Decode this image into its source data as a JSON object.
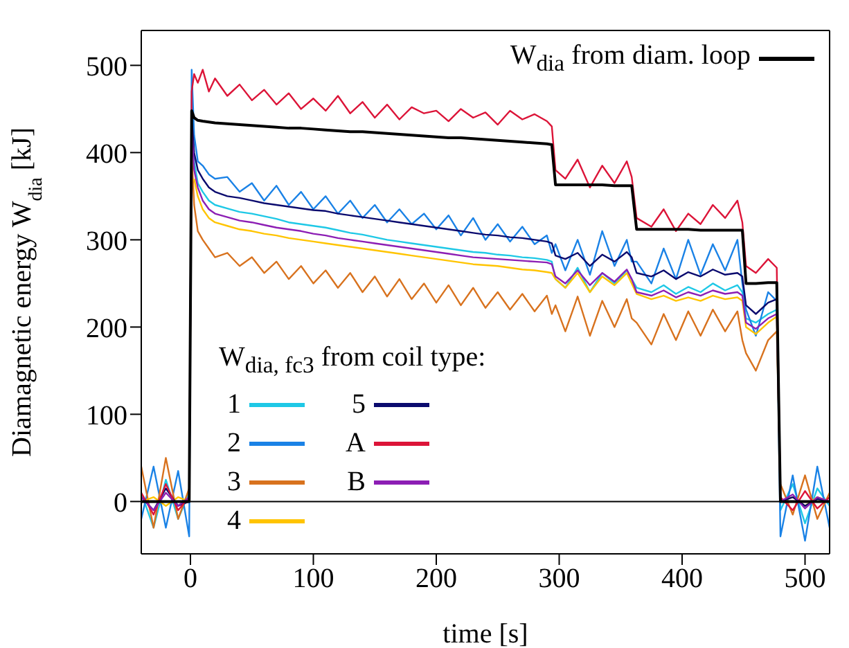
{
  "chart_data": {
    "type": "line",
    "xlabel": "time [s]",
    "ylabel": "Diamagnetic energy W$_{dia}$ [kJ]",
    "legend_title": "W$_{dia, fc3}$ from coil type:",
    "x": [
      -40,
      -30,
      -20,
      -10,
      -1,
      1,
      3,
      6,
      10,
      15,
      20,
      30,
      40,
      50,
      60,
      70,
      80,
      90,
      100,
      110,
      120,
      130,
      140,
      150,
      160,
      170,
      180,
      190,
      200,
      210,
      220,
      230,
      240,
      250,
      260,
      270,
      280,
      290,
      294,
      297,
      305,
      315,
      325,
      335,
      345,
      355,
      359,
      363,
      375,
      385,
      395,
      405,
      415,
      425,
      435,
      445,
      449,
      452,
      460,
      470,
      477,
      480,
      490,
      500,
      510,
      520
    ],
    "xlim": [
      -40,
      520
    ],
    "xticks": [
      0,
      100,
      200,
      300,
      400,
      500
    ],
    "ylim": [
      -60,
      540
    ],
    "yticks": [
      0,
      100,
      200,
      300,
      400,
      500
    ],
    "grid": false,
    "legend": "top right",
    "marker": "none",
    "line_style": "solid",
    "ref_lines": [
      {
        "axis": "y",
        "value": 0,
        "color": "#000000"
      }
    ],
    "series": [
      {
        "name": "W$_{dia}$ from diam. loop",
        "color": "#000000",
        "values": [
          0,
          0,
          0,
          0,
          0,
          448,
          440,
          437,
          436,
          435,
          434,
          433,
          432,
          431,
          430,
          429,
          428,
          428,
          427,
          426,
          425,
          424,
          424,
          423,
          422,
          421,
          420,
          419,
          418,
          417,
          417,
          416,
          415,
          414,
          413,
          412,
          411,
          410,
          409,
          363,
          363,
          363,
          363,
          363,
          362,
          362,
          362,
          312,
          312,
          312,
          312,
          312,
          311,
          311,
          311,
          311,
          311,
          250,
          250,
          251,
          251,
          0,
          0,
          0,
          0,
          0
        ]
      },
      {
        "name": "1",
        "color": "#1ec8e6",
        "values": [
          10,
          -30,
          25,
          -20,
          10,
          460,
          390,
          365,
          355,
          345,
          340,
          336,
          332,
          330,
          327,
          324,
          320,
          318,
          316,
          314,
          311,
          308,
          306,
          303,
          300,
          298,
          296,
          294,
          292,
          290,
          288,
          286,
          285,
          283,
          282,
          280,
          279,
          277,
          275,
          255,
          245,
          268,
          240,
          262,
          250,
          265,
          255,
          245,
          240,
          248,
          238,
          246,
          240,
          250,
          242,
          248,
          240,
          210,
          205,
          215,
          220,
          -10,
          20,
          -25,
          15,
          -5
        ]
      },
      {
        "name": "2",
        "color": "#1a82e6",
        "values": [
          -20,
          40,
          -30,
          35,
          -40,
          495,
          420,
          390,
          385,
          375,
          370,
          372,
          355,
          365,
          345,
          362,
          340,
          355,
          335,
          350,
          330,
          345,
          325,
          340,
          320,
          335,
          318,
          330,
          312,
          328,
          305,
          325,
          300,
          318,
          298,
          315,
          295,
          305,
          285,
          295,
          265,
          300,
          260,
          310,
          270,
          300,
          275,
          275,
          250,
          290,
          255,
          300,
          260,
          295,
          265,
          300,
          250,
          220,
          190,
          240,
          230,
          -40,
          30,
          -45,
          40,
          -30
        ]
      },
      {
        "name": "3",
        "color": "#d8721e",
        "values": [
          40,
          -30,
          50,
          -20,
          15,
          400,
          340,
          310,
          300,
          290,
          280,
          285,
          270,
          280,
          262,
          275,
          255,
          270,
          250,
          265,
          245,
          262,
          240,
          258,
          235,
          255,
          232,
          250,
          228,
          248,
          225,
          245,
          222,
          240,
          220,
          238,
          218,
          236,
          215,
          225,
          195,
          235,
          190,
          230,
          200,
          232,
          210,
          205,
          180,
          215,
          185,
          218,
          190,
          220,
          195,
          218,
          185,
          170,
          150,
          185,
          195,
          20,
          -15,
          30,
          -20,
          10
        ]
      },
      {
        "name": "4",
        "color": "#ffc400",
        "values": [
          0,
          5,
          -5,
          5,
          0,
          null,
          370,
          350,
          335,
          325,
          320,
          316,
          312,
          310,
          307,
          305,
          302,
          300,
          298,
          296,
          294,
          292,
          290,
          288,
          286,
          284,
          282,
          280,
          278,
          276,
          274,
          272,
          271,
          270,
          268,
          266,
          265,
          263,
          262,
          255,
          245,
          262,
          240,
          258,
          248,
          262,
          250,
          238,
          232,
          236,
          230,
          234,
          230,
          236,
          232,
          234,
          230,
          200,
          192,
          205,
          212,
          0,
          5,
          -5,
          5,
          0
        ]
      },
      {
        "name": "5",
        "color": "#0a0a6e",
        "values": [
          5,
          -10,
          15,
          -5,
          0,
          440,
          400,
          380,
          370,
          360,
          355,
          350,
          348,
          345,
          342,
          340,
          338,
          336,
          334,
          333,
          330,
          328,
          326,
          324,
          322,
          320,
          318,
          316,
          314,
          312,
          310,
          308,
          306,
          305,
          303,
          302,
          300,
          298,
          296,
          282,
          278,
          285,
          270,
          283,
          275,
          286,
          280,
          262,
          258,
          265,
          255,
          263,
          258,
          266,
          260,
          262,
          258,
          225,
          215,
          228,
          232,
          0,
          5,
          -5,
          3,
          0
        ]
      },
      {
        "name": "A",
        "color": "#dc1438",
        "values": [
          10,
          -15,
          20,
          -10,
          5,
          470,
          490,
          480,
          495,
          470,
          485,
          465,
          478,
          460,
          472,
          455,
          468,
          450,
          462,
          448,
          465,
          445,
          458,
          440,
          455,
          438,
          452,
          445,
          448,
          436,
          450,
          440,
          446,
          432,
          448,
          438,
          444,
          436,
          430,
          380,
          370,
          392,
          360,
          385,
          365,
          390,
          372,
          325,
          315,
          335,
          310,
          330,
          318,
          340,
          325,
          345,
          320,
          270,
          262,
          278,
          268,
          5,
          -10,
          12,
          -8,
          5
        ]
      },
      {
        "name": "B",
        "color": "#8c1eb4",
        "values": [
          5,
          -10,
          10,
          -5,
          5,
          430,
          380,
          360,
          345,
          335,
          330,
          326,
          322,
          320,
          317,
          314,
          312,
          310,
          307,
          305,
          302,
          300,
          298,
          296,
          294,
          292,
          290,
          288,
          286,
          284,
          282,
          280,
          279,
          278,
          277,
          276,
          275,
          274,
          272,
          258,
          250,
          265,
          248,
          262,
          252,
          266,
          255,
          240,
          236,
          242,
          234,
          240,
          236,
          242,
          238,
          240,
          236,
          205,
          198,
          210,
          215,
          0,
          8,
          -8,
          5,
          0
        ]
      }
    ]
  }
}
